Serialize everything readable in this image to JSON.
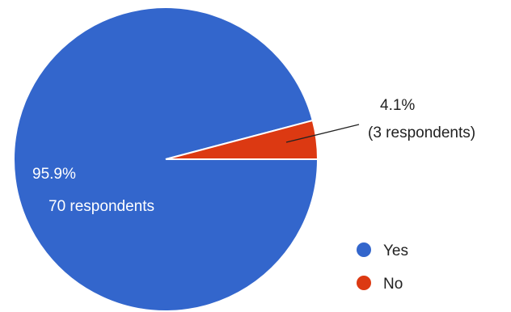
{
  "chart_data": {
    "type": "pie",
    "slices": [
      {
        "name": "Yes",
        "value": 70,
        "percent_label": "95.9%",
        "count_label": "70 respondents",
        "color": "#3366cc"
      },
      {
        "name": "No",
        "value": 3,
        "percent_label": "4.1%",
        "count_label": "(3 respondents)",
        "color": "#dc3912"
      }
    ],
    "legend": {
      "position": "bottom-right",
      "entries": [
        "Yes",
        "No"
      ]
    }
  }
}
